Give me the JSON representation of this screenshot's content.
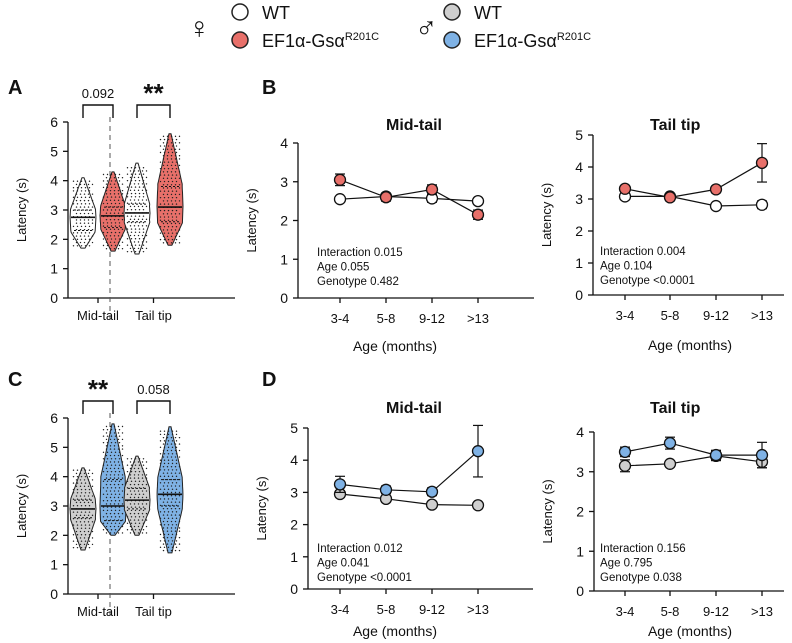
{
  "legend": {
    "female_symbol": "♀",
    "male_symbol": "♂",
    "entries": [
      {
        "label": "WT",
        "color": "#ffffff",
        "sex": "female"
      },
      {
        "label": "EF1α-Gsα",
        "sup": "R201C",
        "color": "#e8706a",
        "sex": "female"
      },
      {
        "label": "WT",
        "color": "#cfcfcf",
        "sex": "male"
      },
      {
        "label": "EF1α-Gsα",
        "sup": "R201C",
        "color": "#7fb2e5",
        "sex": "male"
      }
    ]
  },
  "panel_labels": {
    "A": "A",
    "B": "B",
    "C": "C",
    "D": "D"
  },
  "chart_data": [
    {
      "id": "A",
      "type": "violin",
      "ylabel": "Latency (s)",
      "ylim": [
        0,
        6
      ],
      "yticks": [
        "0",
        "1",
        "2",
        "3",
        "4",
        "5",
        "6"
      ],
      "groups": [
        {
          "name": "Mid-tail",
          "wt": {
            "min": 1.7,
            "q1": 2.3,
            "median": 2.75,
            "q3": 3.0,
            "max": 4.1
          },
          "mut": {
            "min": 1.6,
            "q1": 2.4,
            "median": 2.8,
            "q3": 3.1,
            "max": 4.3
          },
          "sig": "0.092"
        },
        {
          "name": "Tail tip",
          "wt": {
            "min": 1.5,
            "q1": 2.6,
            "median": 2.9,
            "q3": 3.2,
            "max": 4.6
          },
          "mut": {
            "min": 1.8,
            "q1": 2.6,
            "median": 3.1,
            "q3": 3.8,
            "max": 5.6
          },
          "sig": "**"
        }
      ],
      "mut_color": "#e8706a",
      "wt_color": "#ffffff"
    },
    {
      "id": "B1",
      "type": "line",
      "title": "Mid-tail",
      "xlabel": "Age (months)",
      "ylabel": "Latency (s)",
      "categories": [
        "3-4",
        "5-8",
        "9-12",
        ">13"
      ],
      "ylim": [
        0,
        4
      ],
      "yticks": [
        "0",
        "1",
        "2",
        "3",
        "4"
      ],
      "series": [
        {
          "name": "WT",
          "values": [
            2.55,
            2.62,
            2.57,
            2.5
          ],
          "err": [
            0.05,
            0.08,
            0.1,
            0.08
          ],
          "color": "#ffffff"
        },
        {
          "name": "EF1α-Gsα R201C",
          "values": [
            3.05,
            2.6,
            2.8,
            2.15
          ],
          "err": [
            0.15,
            0.1,
            0.12,
            0.12
          ],
          "color": "#e8706a"
        }
      ],
      "stats": [
        "Interaction 0.015",
        "Age 0.055",
        "Genotype 0.482"
      ]
    },
    {
      "id": "B2",
      "type": "line",
      "title": "Tail tip",
      "xlabel": "Age (months)",
      "ylabel": "Latency (s)",
      "categories": [
        "3-4",
        "5-8",
        "9-12",
        ">13"
      ],
      "ylim": [
        0,
        5
      ],
      "yticks": [
        "0",
        "1",
        "2",
        "3",
        "4",
        "5"
      ],
      "series": [
        {
          "name": "WT",
          "values": [
            3.08,
            3.08,
            2.78,
            2.82
          ],
          "err": [
            0.08,
            0.08,
            0.08,
            0.12
          ],
          "color": "#ffffff"
        },
        {
          "name": "EF1α-Gsα R201C",
          "values": [
            3.32,
            3.05,
            3.3,
            4.13
          ],
          "err": [
            0.1,
            0.1,
            0.1,
            0.6
          ],
          "color": "#e8706a"
        }
      ],
      "stats": [
        "Interaction 0.004",
        "Age 0.104",
        "Genotype <0.0001"
      ]
    },
    {
      "id": "C",
      "type": "violin",
      "ylabel": "Latency (s)",
      "ylim": [
        0,
        6
      ],
      "yticks": [
        "0",
        "1",
        "2",
        "3",
        "4",
        "5",
        "6"
      ],
      "groups": [
        {
          "name": "Mid-tail",
          "wt": {
            "min": 1.5,
            "q1": 2.6,
            "median": 2.9,
            "q3": 3.2,
            "max": 4.3
          },
          "mut": {
            "min": 2.0,
            "q1": 2.5,
            "median": 3.0,
            "q3": 3.9,
            "max": 5.8
          },
          "sig": "**"
        },
        {
          "name": "Tail tip",
          "wt": {
            "min": 2.0,
            "q1": 2.9,
            "median": 3.2,
            "q3": 3.6,
            "max": 4.7
          },
          "mut": {
            "min": 1.4,
            "q1": 3.0,
            "median": 3.4,
            "q3": 3.9,
            "max": 5.7
          },
          "sig": "0.058"
        }
      ],
      "mut_color": "#7fb2e5",
      "wt_color": "#cfcfcf"
    },
    {
      "id": "D1",
      "type": "line",
      "title": "Mid-tail",
      "xlabel": "Age (months)",
      "ylabel": "Latency (s)",
      "categories": [
        "3-4",
        "5-8",
        "9-12",
        ">13"
      ],
      "ylim": [
        0,
        5
      ],
      "yticks": [
        "0",
        "1",
        "2",
        "3",
        "4",
        "5"
      ],
      "series": [
        {
          "name": "WT",
          "values": [
            2.95,
            2.8,
            2.62,
            2.6
          ],
          "err": [
            0.1,
            0.08,
            0.06,
            0.06
          ],
          "color": "#cfcfcf"
        },
        {
          "name": "EF1α-Gsα R201C",
          "values": [
            3.25,
            3.08,
            3.02,
            4.28
          ],
          "err": [
            0.25,
            0.12,
            0.12,
            0.8
          ],
          "color": "#7fb2e5"
        }
      ],
      "stats": [
        "Interaction 0.012",
        "Age 0.041",
        "Genotype <0.0001"
      ]
    },
    {
      "id": "D2",
      "type": "line",
      "title": "Tail tip",
      "xlabel": "Age (months)",
      "ylabel": "Latency (s)",
      "categories": [
        "3-4",
        "5-8",
        "9-12",
        ">13"
      ],
      "ylim": [
        0,
        4
      ],
      "yticks": [
        "0",
        "1",
        "2",
        "3",
        "4"
      ],
      "series": [
        {
          "name": "WT",
          "values": [
            3.15,
            3.2,
            3.4,
            3.25
          ],
          "err": [
            0.15,
            0.08,
            0.12,
            0.15
          ],
          "color": "#cfcfcf"
        },
        {
          "name": "EF1α-Gsα R201C",
          "values": [
            3.5,
            3.72,
            3.42,
            3.42
          ],
          "err": [
            0.12,
            0.15,
            0.12,
            0.32
          ],
          "color": "#7fb2e5"
        }
      ],
      "stats": [
        "Interaction 0.156",
        "Age 0.795",
        "Genotype 0.038"
      ]
    }
  ]
}
